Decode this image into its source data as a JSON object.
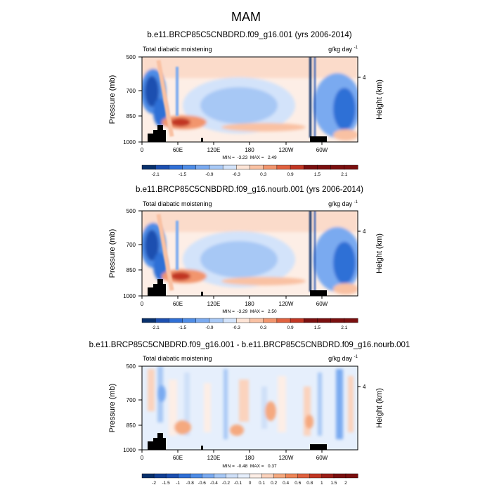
{
  "figure": {
    "title": "MAM"
  },
  "colors": {
    "blue_red_12": [
      "#08306b",
      "#1c4fb0",
      "#2f6fd6",
      "#4e8ce6",
      "#7aaaf0",
      "#a7c8f5",
      "#d3e3fa",
      "#fde4d6",
      "#f9c1a3",
      "#f2956d",
      "#e0613f",
      "#c13623",
      "#7a0f0f"
    ],
    "blue_red_16": [
      "#08306b",
      "#123f94",
      "#1c4fb0",
      "#2f6fd6",
      "#4e8ce6",
      "#7aaaf0",
      "#a7c8f5",
      "#cfe0f8",
      "#e6effc",
      "#fdeee6",
      "#fbd3bd",
      "#f5a97f",
      "#ee8658",
      "#e0613f",
      "#c13623",
      "#9b1e18",
      "#7a0f0f"
    ],
    "land": "#000000"
  },
  "chart_data": [
    {
      "type": "heatmap",
      "title": "b.e11.BRCP85C5CNBDRD.f09_g16.001 (yrs 2006-2014)",
      "left_label": "Total diabatic moistening",
      "right_label": "g/kg day",
      "units_exp": "-1",
      "ylabel": "Pressure (mb)",
      "right_axis_label": "Height (km)",
      "right_tick": "4",
      "y_ticks": [
        "500",
        "700",
        "850",
        "1000"
      ],
      "x_ticks": [
        "0",
        "60E",
        "120E",
        "180",
        "120W",
        "60W"
      ],
      "x_tick_lons": [
        0,
        60,
        120,
        180,
        240,
        300
      ],
      "xlim_lon": [
        0,
        360
      ],
      "ylim_mb": [
        1000,
        500
      ],
      "stats": "MIN =  -3.23  MAX =   2.49",
      "min": -3.23,
      "max": 2.49,
      "colorbar_levels": [
        -2.1,
        -1.8,
        -1.5,
        -1.2,
        -0.9,
        -0.6,
        -0.3,
        0,
        0.3,
        0.6,
        0.9,
        1.2,
        1.5,
        1.8,
        2.1
      ],
      "colorbar_labels": [
        "-2.1",
        "-1.5",
        "-0.9",
        "-0.3",
        "0.3",
        "0.9",
        "1.5",
        "2.1"
      ]
    },
    {
      "type": "heatmap",
      "title": "b.e11.BRCP85C5CNBDRD.f09_g16.nourb.001 (yrs 2006-2014)",
      "left_label": "Total diabatic moistening",
      "right_label": "g/kg day",
      "units_exp": "-1",
      "ylabel": "Pressure (mb)",
      "right_axis_label": "Height (km)",
      "right_tick": "4",
      "y_ticks": [
        "500",
        "700",
        "850",
        "1000"
      ],
      "x_ticks": [
        "0",
        "60E",
        "120E",
        "180",
        "120W",
        "60W"
      ],
      "x_tick_lons": [
        0,
        60,
        120,
        180,
        240,
        300
      ],
      "xlim_lon": [
        0,
        360
      ],
      "ylim_mb": [
        1000,
        500
      ],
      "stats": "MIN =  -3.29  MAX =   2.50",
      "min": -3.29,
      "max": 2.5,
      "colorbar_levels": [
        -2.1,
        -1.8,
        -1.5,
        -1.2,
        -0.9,
        -0.6,
        -0.3,
        0,
        0.3,
        0.6,
        0.9,
        1.2,
        1.5,
        1.8,
        2.1
      ],
      "colorbar_labels": [
        "-2.1",
        "-1.5",
        "-0.9",
        "-0.3",
        "0.3",
        "0.9",
        "1.5",
        "2.1"
      ]
    },
    {
      "type": "heatmap",
      "title": "b.e11.BRCP85C5CNBDRD.f09_g16.001 - b.e11.BRCP85C5CNBDRD.f09_g16.nourb.001",
      "left_label": "Total diabatic moistening",
      "right_label": "g/kg day",
      "units_exp": "-1",
      "ylabel": "Pressure (mb)",
      "right_axis_label": "Height (km)",
      "right_tick": "4",
      "y_ticks": [
        "500",
        "700",
        "850",
        "1000"
      ],
      "x_ticks": [
        "0",
        "60E",
        "120E",
        "180",
        "120W",
        "60W"
      ],
      "x_tick_lons": [
        0,
        60,
        120,
        180,
        240,
        300
      ],
      "xlim_lon": [
        0,
        360
      ],
      "ylim_mb": [
        1000,
        500
      ],
      "stats": "MIN =  -0.48  MAX =   0.37",
      "min": -0.48,
      "max": 0.37,
      "colorbar_levels": [
        -2,
        -1.5,
        -1,
        -0.8,
        -0.6,
        -0.4,
        -0.2,
        -0.1,
        0,
        0.1,
        0.2,
        0.4,
        0.6,
        0.8,
        1,
        1.5,
        2
      ],
      "colorbar_labels": [
        "-2",
        "-1.5",
        "-1",
        "-0.8",
        "-0.6",
        "-0.4",
        "-0.2",
        "-0.1",
        "0",
        "0.1",
        "0.2",
        "0.4",
        "0.6",
        "0.8",
        "1",
        "1.5",
        "2"
      ]
    }
  ]
}
